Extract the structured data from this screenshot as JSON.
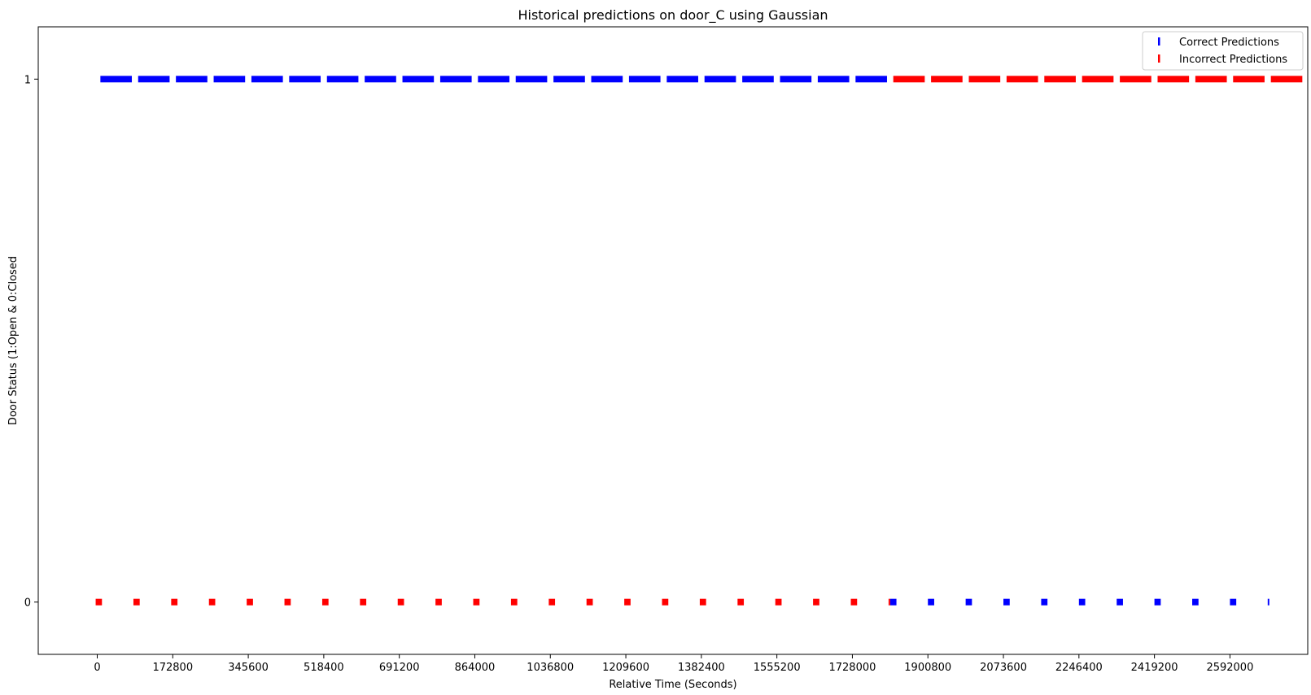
{
  "chart_data": {
    "type": "scatter",
    "title": "Historical predictions on door_C using Gaussian",
    "xlabel": "Relative Time (Seconds)",
    "ylabel": "Door Status (1:Open & 0:Closed",
    "xlim": [
      -135000,
      2770000
    ],
    "ylim": [
      -0.1,
      1.1
    ],
    "xticks": [
      0,
      172800,
      345600,
      518400,
      691200,
      864000,
      1036800,
      1209600,
      1382400,
      1555200,
      1728000,
      1900800,
      2073600,
      2246400,
      2419200,
      2592000
    ],
    "yticks": [
      0,
      1
    ],
    "colors": {
      "correct": "#0000ff",
      "incorrect": "#ff0000"
    },
    "legend": {
      "placement": "top-right",
      "entries": [
        "Correct Predictions",
        "Incorrect Predictions"
      ]
    },
    "series": [
      {
        "name": "Correct Predictions",
        "color": "#0000ff",
        "y1_segments": [
          [
            7200,
            79200
          ],
          [
            93600,
            165600
          ],
          [
            180000,
            252000
          ],
          [
            266400,
            338400
          ],
          [
            352800,
            424800
          ],
          [
            439200,
            511200
          ],
          [
            525600,
            597600
          ],
          [
            612000,
            684000
          ],
          [
            698400,
            770400
          ],
          [
            784800,
            856800
          ],
          [
            871200,
            943200
          ],
          [
            957600,
            1029600
          ],
          [
            1044000,
            1116000
          ],
          [
            1130400,
            1202400
          ],
          [
            1216800,
            1288800
          ],
          [
            1303200,
            1375200
          ],
          [
            1389600,
            1461600
          ],
          [
            1476000,
            1548000
          ],
          [
            1562400,
            1634400
          ],
          [
            1648800,
            1720800
          ],
          [
            1735200,
            1807200
          ]
        ],
        "y0_segments": [
          [
            1814400,
            1828800
          ],
          [
            1900800,
            1915200
          ],
          [
            1987200,
            2001600
          ],
          [
            2073600,
            2088000
          ],
          [
            2160000,
            2174400
          ],
          [
            2246400,
            2260800
          ],
          [
            2332800,
            2347200
          ],
          [
            2419200,
            2433600
          ],
          [
            2505600,
            2520000
          ],
          [
            2592000,
            2606400
          ],
          [
            2678400,
            2682000
          ]
        ]
      },
      {
        "name": "Incorrect Predictions",
        "color": "#ff0000",
        "y1_segments": [
          [
            1821600,
            1893600
          ],
          [
            1908000,
            1980000
          ],
          [
            1994400,
            2066400
          ],
          [
            2080800,
            2152800
          ],
          [
            2167200,
            2239200
          ],
          [
            2253600,
            2325600
          ],
          [
            2340000,
            2412000
          ],
          [
            2426400,
            2498400
          ],
          [
            2512800,
            2584800
          ],
          [
            2599200,
            2671200
          ],
          [
            2685600,
            2757600
          ]
        ],
        "y0_segments": [
          [
            -3600,
            10800
          ],
          [
            82800,
            97200
          ],
          [
            169200,
            183600
          ],
          [
            255600,
            270000
          ],
          [
            342000,
            356400
          ],
          [
            428400,
            442800
          ],
          [
            514800,
            529200
          ],
          [
            601200,
            615600
          ],
          [
            687600,
            702000
          ],
          [
            774000,
            788400
          ],
          [
            860400,
            874800
          ],
          [
            946800,
            961200
          ],
          [
            1033200,
            1047600
          ],
          [
            1119600,
            1134000
          ],
          [
            1206000,
            1220400
          ],
          [
            1292400,
            1306800
          ],
          [
            1378800,
            1393200
          ],
          [
            1465200,
            1479600
          ],
          [
            1551600,
            1566000
          ],
          [
            1638000,
            1652400
          ],
          [
            1724400,
            1738800
          ],
          [
            1810800,
            1814400
          ]
        ]
      }
    ]
  }
}
